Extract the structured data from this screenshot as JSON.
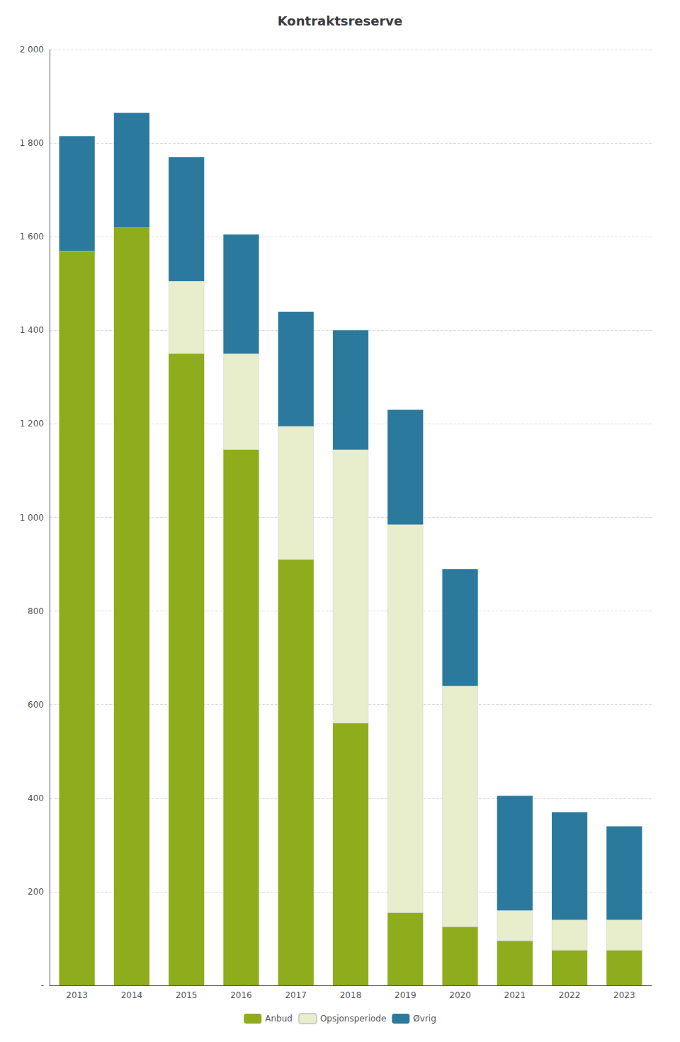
{
  "chart_data": {
    "type": "bar",
    "title": "Kontraktsreserve",
    "categories": [
      "2013",
      "2014",
      "2015",
      "2016",
      "2017",
      "2018",
      "2019",
      "2020",
      "2021",
      "2022",
      "2023"
    ],
    "series": [
      {
        "name": "Anbud",
        "color": "#8fac1c",
        "values": [
          1570,
          1620,
          1350,
          1145,
          910,
          560,
          155,
          125,
          95,
          75,
          75
        ]
      },
      {
        "name": "Opsjonsperiode",
        "color": "#e8eecc",
        "values": [
          0,
          0,
          155,
          205,
          285,
          585,
          830,
          515,
          65,
          65,
          65
        ]
      },
      {
        "name": "Øvrig",
        "color": "#2b7a9e",
        "values": [
          245,
          245,
          265,
          255,
          245,
          255,
          245,
          250,
          245,
          230,
          200
        ]
      }
    ],
    "stacked": true,
    "ylim": [
      0,
      2000
    ],
    "yticks": [
      {
        "value": 0,
        "label": "-"
      },
      200,
      400,
      600,
      800,
      {
        "value": 1000,
        "label": "1 000"
      },
      {
        "value": 1200,
        "label": "1 200"
      },
      {
        "value": 1400,
        "label": "1 400"
      },
      {
        "value": 1600,
        "label": "1 600"
      },
      {
        "value": 1800,
        "label": "1 800"
      },
      {
        "value": 2000,
        "label": "2 000"
      }
    ],
    "grid": true,
    "legend": "bottom"
  }
}
